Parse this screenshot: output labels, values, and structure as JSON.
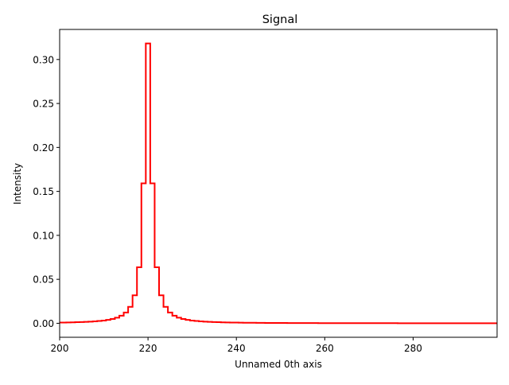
{
  "chart_data": {
    "type": "line",
    "drawstyle": "steps-mid",
    "title": "Signal",
    "xlabel": "Unnamed 0th axis",
    "ylabel": "Intensity",
    "xlim": [
      200,
      299
    ],
    "ylim": [
      -0.0159,
      0.3342
    ],
    "xticks": [
      200,
      220,
      240,
      260,
      280
    ],
    "xtick_labels": [
      "200",
      "220",
      "240",
      "260",
      "280"
    ],
    "yticks": [
      0.0,
      0.05,
      0.1,
      0.15,
      0.2,
      0.25,
      0.3
    ],
    "ytick_labels": [
      "0.00",
      "0.05",
      "0.10",
      "0.15",
      "0.20",
      "0.25",
      "0.30"
    ],
    "grid": false,
    "legend": null,
    "series": [
      {
        "name": "Signal",
        "color": "#ff0000",
        "model": "Lorentzian centre 220, gamma 1, area 1",
        "x_start": 200,
        "x_end": 299,
        "peak": {
          "x": 220,
          "y": 0.3183
        },
        "sample_points": [
          {
            "x": 200,
            "y": 0.0008
          },
          {
            "x": 210,
            "y": 0.0032
          },
          {
            "x": 214,
            "y": 0.0086
          },
          {
            "x": 215,
            "y": 0.0122
          },
          {
            "x": 216,
            "y": 0.0187
          },
          {
            "x": 217,
            "y": 0.0318
          },
          {
            "x": 218,
            "y": 0.0637
          },
          {
            "x": 219,
            "y": 0.1592
          },
          {
            "x": 220,
            "y": 0.3183
          },
          {
            "x": 221,
            "y": 0.1592
          },
          {
            "x": 222,
            "y": 0.0637
          },
          {
            "x": 223,
            "y": 0.0318
          },
          {
            "x": 224,
            "y": 0.0187
          },
          {
            "x": 225,
            "y": 0.0122
          },
          {
            "x": 226,
            "y": 0.0086
          },
          {
            "x": 230,
            "y": 0.0032
          },
          {
            "x": 240,
            "y": 0.0008
          },
          {
            "x": 260,
            "y": 0.0002
          },
          {
            "x": 299,
            "y": 0.0001
          }
        ]
      }
    ]
  }
}
